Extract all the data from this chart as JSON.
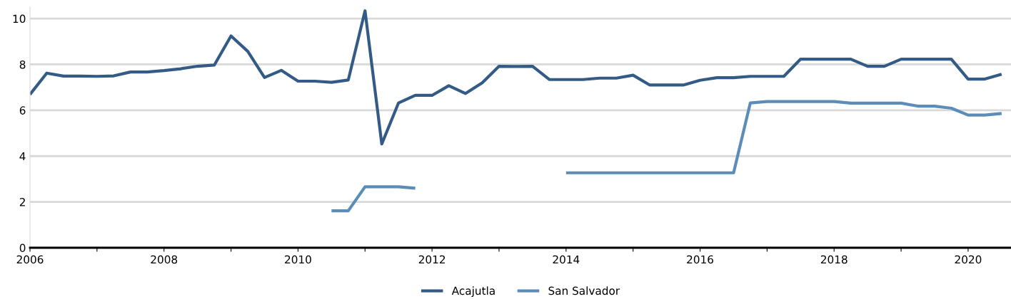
{
  "chart_data": {
    "type": "line",
    "x": [
      2006,
      2006.25,
      2006.5,
      2006.75,
      2007,
      2007.25,
      2007.5,
      2007.75,
      2008,
      2008.25,
      2008.5,
      2008.75,
      2009,
      2009.25,
      2009.5,
      2009.75,
      2010,
      2010.25,
      2010.5,
      2010.75,
      2011,
      2011.25,
      2011.5,
      2011.75,
      2012,
      2012.25,
      2012.5,
      2012.75,
      2013,
      2013.25,
      2013.5,
      2013.75,
      2014,
      2014.25,
      2014.5,
      2014.75,
      2015,
      2015.25,
      2015.5,
      2015.75,
      2016,
      2016.25,
      2016.5,
      2016.75,
      2017,
      2017.25,
      2017.5,
      2017.75,
      2018,
      2018.25,
      2018.5,
      2018.75,
      2019,
      2019.25,
      2019.5,
      2019.75,
      2020,
      2020.25,
      2020.5
    ],
    "series": [
      {
        "name": "Acajutla",
        "color": "#335b85",
        "values": [
          6.69,
          7.62,
          7.49,
          7.49,
          7.48,
          7.5,
          7.67,
          7.67,
          7.73,
          7.81,
          7.92,
          7.97,
          9.24,
          8.57,
          7.43,
          7.74,
          7.27,
          7.27,
          7.22,
          7.32,
          10.34,
          4.53,
          6.32,
          6.65,
          6.65,
          7.07,
          6.73,
          7.2,
          7.92,
          7.91,
          7.92,
          7.34,
          7.34,
          7.34,
          7.4,
          7.4,
          7.53,
          7.1,
          7.1,
          7.1,
          7.31,
          7.42,
          7.42,
          7.48,
          7.48,
          7.48,
          8.23,
          8.23,
          8.23,
          8.23,
          7.92,
          7.92,
          8.23,
          8.23,
          8.23,
          8.23,
          7.36,
          7.36,
          7.57
        ]
      },
      {
        "name": "San Salvador",
        "color": "#5b8db8",
        "values": [
          null,
          null,
          null,
          null,
          null,
          null,
          null,
          null,
          null,
          null,
          null,
          null,
          null,
          null,
          null,
          null,
          null,
          null,
          1.61,
          1.61,
          2.66,
          2.66,
          2.66,
          2.6,
          null,
          null,
          null,
          null,
          null,
          null,
          null,
          null,
          3.27,
          3.27,
          3.27,
          3.27,
          3.27,
          3.27,
          3.27,
          3.27,
          3.27,
          3.27,
          3.27,
          6.32,
          6.38,
          6.38,
          6.38,
          6.38,
          6.38,
          6.31,
          6.31,
          6.31,
          6.31,
          6.18,
          6.18,
          6.09,
          5.79,
          5.79,
          5.86
        ]
      }
    ],
    "xlim": [
      2006,
      2020.64
    ],
    "xticks": [
      2006,
      {
        "value": 2007,
        "label": null
      },
      2008,
      {
        "value": 2009,
        "label": null
      },
      2010,
      {
        "value": 2011,
        "label": null
      },
      2012,
      {
        "value": 2013,
        "label": null
      },
      2014,
      {
        "value": 2015,
        "label": null
      },
      2016,
      {
        "value": 2017,
        "label": null
      },
      2018,
      {
        "value": 2019,
        "label": null
      },
      2020
    ],
    "ylim": [
      0,
      10.5
    ],
    "yticks": [
      0,
      2,
      4,
      6,
      8,
      10
    ],
    "grid": "y",
    "legend": "bottom",
    "marker": "none",
    "line_style": "solid"
  }
}
